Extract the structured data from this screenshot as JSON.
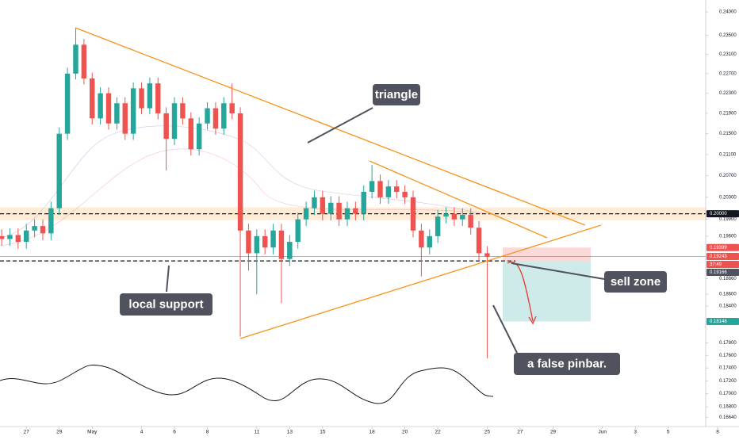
{
  "chart_data": {
    "type": "candlestick",
    "log_scale": true,
    "ylim": [
      0.1648,
      0.2426
    ],
    "xlim": [
      -1.6,
      43.3
    ],
    "up_color": "#26a69a",
    "down_color": "#ef5350",
    "yticks": [
      {
        "value": 0.24,
        "label": "0.24000"
      },
      {
        "value": 0.235,
        "label": "0.23500"
      },
      {
        "value": 0.231,
        "label": "0.23100"
      },
      {
        "value": 0.227,
        "label": "0.22700"
      },
      {
        "value": 0.223,
        "label": "0.22300"
      },
      {
        "value": 0.219,
        "label": "0.21900"
      },
      {
        "value": 0.215,
        "label": "0.21500"
      },
      {
        "value": 0.211,
        "label": "0.21100"
      },
      {
        "value": 0.207,
        "label": "0.20700"
      },
      {
        "value": 0.203,
        "label": "0.20300"
      },
      {
        "value": 0.199,
        "label": "0.19900"
      },
      {
        "value": 0.196,
        "label": "0.19600"
      },
      {
        "value": 0.1886,
        "label": "0.18860"
      },
      {
        "value": 0.186,
        "label": "0.18600"
      },
      {
        "value": 0.184,
        "label": "0.18400"
      },
      {
        "value": 0.178,
        "label": "0.17800"
      },
      {
        "value": 0.176,
        "label": "0.17600"
      },
      {
        "value": 0.174,
        "label": "0.17400"
      },
      {
        "value": 0.172,
        "label": "0.17200"
      },
      {
        "value": 0.17,
        "label": "0.17000"
      },
      {
        "value": 0.168,
        "label": "0.16800"
      },
      {
        "value": 0.1664,
        "label": "0.16640"
      }
    ],
    "xticks": [
      {
        "value": 0,
        "label": "27"
      },
      {
        "value": 2,
        "label": "29"
      },
      {
        "value": 4,
        "label": "May"
      },
      {
        "value": 7,
        "label": "4"
      },
      {
        "value": 9,
        "label": "6"
      },
      {
        "value": 11,
        "label": "8"
      },
      {
        "value": 14,
        "label": "11"
      },
      {
        "value": 16,
        "label": "13"
      },
      {
        "value": 18,
        "label": "15"
      },
      {
        "value": 21,
        "label": "18"
      },
      {
        "value": 23,
        "label": "20"
      },
      {
        "value": 25,
        "label": "22"
      },
      {
        "value": 28,
        "label": "25"
      },
      {
        "value": 30,
        "label": "27"
      },
      {
        "value": 32,
        "label": "29"
      },
      {
        "value": 35,
        "label": "Jun"
      },
      {
        "value": 37,
        "label": "3"
      },
      {
        "value": 39,
        "label": "5"
      },
      {
        "value": 42,
        "label": "8"
      }
    ],
    "x": [
      -1.5,
      -1,
      -0.5,
      0,
      0.5,
      1,
      1.5,
      2,
      2.5,
      3,
      3.5,
      4,
      4.5,
      5,
      5.5,
      6,
      6.5,
      7,
      7.5,
      8,
      8.5,
      9,
      9.5,
      10,
      10.5,
      11,
      11.5,
      12,
      12.5,
      13,
      13.5,
      14,
      14.5,
      15,
      15.5,
      16,
      16.5,
      17,
      17.5,
      18,
      18.5,
      19,
      19.5,
      20,
      20.5,
      21,
      21.5,
      22,
      22.5,
      23,
      23.5,
      24,
      24.5,
      25,
      25.5,
      26,
      26.5,
      27,
      27.5,
      28
    ],
    "open": [
      0.196,
      0.1955,
      0.1962,
      0.195,
      0.197,
      0.1978,
      0.1965,
      0.201,
      0.215,
      0.227,
      0.233,
      0.226,
      0.218,
      0.223,
      0.217,
      0.221,
      0.215,
      0.224,
      0.22,
      0.225,
      0.219,
      0.214,
      0.221,
      0.218,
      0.212,
      0.217,
      0.22,
      0.216,
      0.221,
      0.219,
      0.197,
      0.193,
      0.196,
      0.194,
      0.197,
      0.192,
      0.195,
      0.199,
      0.201,
      0.203,
      0.2,
      0.202,
      0.199,
      0.201,
      0.2,
      0.204,
      0.206,
      0.203,
      0.205,
      0.204,
      0.203,
      0.197,
      0.194,
      0.196,
      0.1995,
      0.2,
      0.199,
      0.1998,
      0.1975,
      0.193
    ],
    "high": [
      0.1972,
      0.1974,
      0.1974,
      0.1982,
      0.199,
      0.199,
      0.2022,
      0.2162,
      0.2282,
      0.2366,
      0.2342,
      0.2272,
      0.2242,
      0.2242,
      0.2222,
      0.2222,
      0.2252,
      0.2252,
      0.2262,
      0.2262,
      0.2202,
      0.2222,
      0.2222,
      0.2192,
      0.2182,
      0.2212,
      0.2212,
      0.2222,
      0.225,
      0.2202,
      0.1982,
      0.1972,
      0.1972,
      0.1982,
      0.1982,
      0.1962,
      0.2002,
      0.2022,
      0.2042,
      0.2042,
      0.2032,
      0.2032,
      0.2022,
      0.2022,
      0.2052,
      0.209,
      0.2072,
      0.2062,
      0.2062,
      0.2052,
      0.2042,
      0.1982,
      0.1972,
      0.2007,
      0.2012,
      0.2012,
      0.201,
      0.201,
      0.1987,
      0.1942
    ],
    "low": [
      0.1943,
      0.1943,
      0.1938,
      0.1938,
      0.1958,
      0.1953,
      0.1953,
      0.1998,
      0.2138,
      0.2258,
      0.2248,
      0.2168,
      0.2168,
      0.2158,
      0.2158,
      0.2138,
      0.2138,
      0.2188,
      0.2188,
      0.2178,
      0.208,
      0.2128,
      0.2168,
      0.2108,
      0.2108,
      0.2158,
      0.2148,
      0.2148,
      0.2178,
      0.179,
      0.19,
      0.186,
      0.1928,
      0.1928,
      0.1845,
      0.1908,
      0.1938,
      0.1978,
      0.1998,
      0.1988,
      0.1988,
      0.1978,
      0.1978,
      0.1988,
      0.1988,
      0.2028,
      0.2018,
      0.2018,
      0.2028,
      0.2018,
      0.1958,
      0.189,
      0.1928,
      0.1948,
      0.1983,
      0.1978,
      0.1978,
      0.1963,
      0.1918,
      0.1755
    ],
    "close": [
      0.1955,
      0.1962,
      0.195,
      0.197,
      0.1978,
      0.1965,
      0.201,
      0.215,
      0.227,
      0.233,
      0.226,
      0.218,
      0.223,
      0.217,
      0.221,
      0.215,
      0.224,
      0.22,
      0.225,
      0.219,
      0.214,
      0.221,
      0.218,
      0.212,
      0.217,
      0.22,
      0.216,
      0.221,
      0.219,
      0.197,
      0.193,
      0.196,
      0.194,
      0.197,
      0.192,
      0.195,
      0.199,
      0.201,
      0.203,
      0.2,
      0.202,
      0.199,
      0.201,
      0.2,
      0.204,
      0.206,
      0.203,
      0.205,
      0.204,
      0.203,
      0.197,
      0.194,
      0.196,
      0.1995,
      0.2,
      0.199,
      0.1998,
      0.1975,
      0.193,
      0.1924
    ],
    "price_markers": [
      {
        "value": 0.2,
        "label": "0.20000",
        "color": "#131722"
      },
      {
        "value": 0.19399,
        "label": "0.19399",
        "color": "#ef5350"
      },
      {
        "value": 0.19243,
        "label": "0.19243",
        "color": "#ef5350"
      },
      {
        "value": 0.19166,
        "label": "0.19166",
        "color": "#50535e"
      },
      {
        "value": 0.18146,
        "label": "0.18146",
        "color": "#26a69a"
      }
    ],
    "countdown": "37:49",
    "annotations": [
      "triangle",
      "local support",
      "sell zone",
      "a false pinbar."
    ]
  }
}
